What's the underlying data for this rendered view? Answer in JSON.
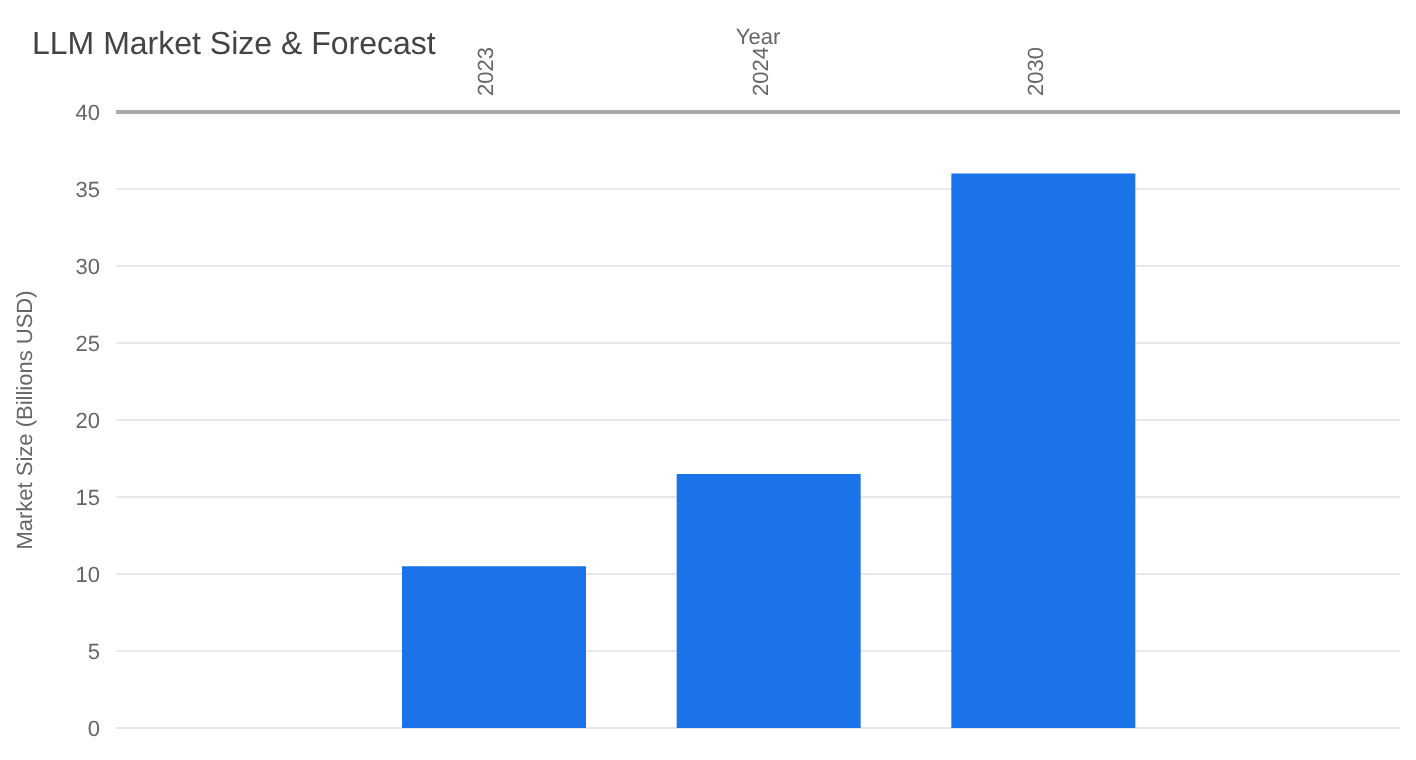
{
  "chart_data": {
    "type": "bar",
    "title": "LLM Market Size & Forecast",
    "xlabel": "Year",
    "ylabel": "Market Size (Billions USD)",
    "categories": [
      "2023",
      "2024",
      "2030"
    ],
    "values": [
      10.5,
      16.5,
      36
    ],
    "color": "#1a73e8",
    "ylim": [
      0,
      40
    ],
    "yticks": [
      0,
      5,
      10,
      15,
      20,
      25,
      30,
      35,
      40
    ],
    "grid": "y"
  }
}
